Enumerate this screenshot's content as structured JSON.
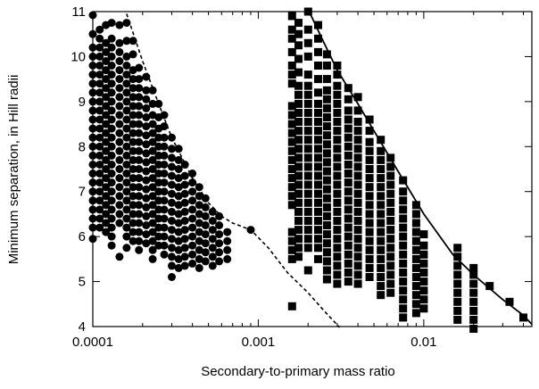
{
  "chart_data": {
    "type": "scatter",
    "title": "",
    "xlabel": "Secondary-to-primary mass ratio",
    "ylabel": "Minimum separation, in Hill radii",
    "xscale": "log",
    "xlim": [
      0.0001,
      0.045
    ],
    "ylim": [
      4,
      11
    ],
    "grid": false,
    "legend": "none",
    "x_ticks": [
      {
        "value": 0.0001,
        "label": "0.0001"
      },
      {
        "value": 0.001,
        "label": "0.001"
      },
      {
        "value": 0.01,
        "label": "0.01"
      }
    ],
    "y_ticks": [
      {
        "value": 4,
        "label": "4"
      },
      {
        "value": 5,
        "label": "5"
      },
      {
        "value": 6,
        "label": "6"
      },
      {
        "value": 7,
        "label": "7"
      },
      {
        "value": 8,
        "label": "8"
      },
      {
        "value": 9,
        "label": "9"
      },
      {
        "value": 10,
        "label": "10"
      },
      {
        "value": 11,
        "label": "11"
      }
    ],
    "circle_columns": [
      {
        "x": 0.0001,
        "y": [
          5.95,
          6.2,
          6.4,
          6.6,
          6.8,
          7.0,
          7.2,
          7.4,
          7.6,
          7.8,
          8.0,
          8.2,
          8.4,
          8.6,
          8.8,
          9.0,
          9.2,
          9.4,
          9.6,
          9.8,
          10.0,
          10.2,
          10.5,
          10.92
        ]
      },
      {
        "x": 0.00011,
        "y": [
          6.2,
          6.4,
          6.6,
          6.8,
          7.0,
          7.2,
          7.4,
          7.6,
          7.8,
          8.0,
          8.2,
          8.4,
          8.6,
          8.8,
          9.0,
          9.2,
          9.4,
          9.6,
          9.8,
          10.0,
          10.2,
          10.4,
          10.6
        ]
      },
      {
        "x": 0.00012,
        "y": [
          6.1,
          6.3,
          6.5,
          6.7,
          6.9,
          7.1,
          7.3,
          7.5,
          7.7,
          7.9,
          8.1,
          8.3,
          8.5,
          8.7,
          8.9,
          9.1,
          9.3,
          9.5,
          9.7,
          9.9,
          10.1,
          10.3,
          10.7
        ]
      },
      {
        "x": 0.00013,
        "y": [
          5.8,
          6.0,
          6.2,
          6.4,
          6.6,
          6.8,
          7.0,
          7.2,
          7.4,
          7.6,
          7.8,
          8.0,
          8.2,
          8.4,
          8.6,
          8.8,
          9.0,
          9.2,
          9.4,
          9.6,
          9.8,
          10.0,
          10.2,
          10.4,
          10.75
        ]
      },
      {
        "x": 0.000145,
        "y": [
          5.55,
          6.3,
          6.5,
          6.7,
          6.9,
          7.1,
          7.3,
          7.5,
          7.7,
          7.9,
          8.1,
          8.3,
          8.5,
          8.7,
          8.9,
          9.1,
          9.3,
          9.5,
          9.7,
          9.9,
          10.1,
          10.3,
          10.7
        ]
      },
      {
        "x": 0.00016,
        "y": [
          5.75,
          6.0,
          6.2,
          6.4,
          6.6,
          6.8,
          7.0,
          7.2,
          7.4,
          7.6,
          7.8,
          8.0,
          8.2,
          8.4,
          8.6,
          8.8,
          9.0,
          9.2,
          9.4,
          9.6,
          9.8,
          10.0,
          10.35,
          10.75
        ]
      },
      {
        "x": 0.000175,
        "y": [
          5.9,
          6.1,
          6.3,
          6.5,
          6.7,
          6.9,
          7.1,
          7.3,
          7.5,
          7.7,
          7.9,
          8.1,
          8.3,
          8.5,
          8.7,
          8.9,
          9.1,
          9.3,
          9.5,
          9.7,
          10.05,
          10.35
        ]
      },
      {
        "x": 0.00019,
        "y": [
          5.7,
          5.9,
          6.1,
          6.3,
          6.5,
          6.7,
          6.9,
          7.1,
          7.3,
          7.5,
          7.7,
          7.9,
          8.1,
          8.3,
          8.5,
          8.7,
          8.9,
          9.1,
          9.3,
          9.5,
          9.75
        ]
      },
      {
        "x": 0.00021,
        "y": [
          5.85,
          6.05,
          6.25,
          6.45,
          6.65,
          6.85,
          7.05,
          7.25,
          7.45,
          7.65,
          7.85,
          8.05,
          8.25,
          8.45,
          8.65,
          8.85,
          9.05,
          9.25,
          9.55
        ]
      },
      {
        "x": 0.00023,
        "y": [
          5.5,
          5.7,
          5.9,
          6.1,
          6.3,
          6.5,
          6.7,
          6.9,
          7.1,
          7.3,
          7.5,
          7.7,
          7.9,
          8.1,
          8.3,
          8.5,
          8.7,
          8.95,
          9.25
        ]
      },
      {
        "x": 0.00025,
        "y": [
          5.8,
          6.0,
          6.2,
          6.4,
          6.6,
          6.8,
          7.0,
          7.2,
          7.4,
          7.6,
          7.8,
          8.0,
          8.2,
          8.4,
          8.65,
          8.95
        ]
      },
      {
        "x": 0.00027,
        "y": [
          5.6,
          5.8,
          6.0,
          6.2,
          6.4,
          6.6,
          6.8,
          7.0,
          7.2,
          7.4,
          7.6,
          7.8,
          8.0,
          8.2,
          8.45,
          8.7
        ]
      },
      {
        "x": 0.0003,
        "y": [
          5.1,
          5.35,
          5.55,
          5.75,
          5.95,
          6.15,
          6.35,
          6.55,
          6.75,
          6.95,
          7.15,
          7.35,
          7.55,
          7.75,
          7.95,
          8.2
        ]
      },
      {
        "x": 0.00033,
        "y": [
          5.3,
          5.5,
          5.7,
          5.9,
          6.1,
          6.3,
          6.5,
          6.7,
          6.9,
          7.1,
          7.3,
          7.5,
          7.7,
          7.95
        ]
      },
      {
        "x": 0.00036,
        "y": [
          5.35,
          5.55,
          5.75,
          5.95,
          6.15,
          6.35,
          6.55,
          6.75,
          6.95,
          7.15,
          7.35,
          7.6
        ]
      },
      {
        "x": 0.0004,
        "y": [
          5.4,
          5.6,
          5.8,
          6.0,
          6.2,
          6.4,
          6.6,
          6.8,
          7.0,
          7.2,
          7.4
        ]
      },
      {
        "x": 0.00044,
        "y": [
          5.3,
          5.5,
          5.7,
          5.9,
          6.1,
          6.3,
          6.5,
          6.7,
          6.9,
          7.1
        ]
      },
      {
        "x": 0.00048,
        "y": [
          5.45,
          5.65,
          5.85,
          6.05,
          6.25,
          6.45,
          6.65,
          6.85
        ]
      },
      {
        "x": 0.00053,
        "y": [
          5.35,
          5.55,
          5.75,
          5.95,
          6.15,
          6.35,
          6.55
        ]
      },
      {
        "x": 0.00058,
        "y": [
          5.45,
          5.65,
          5.85,
          6.05,
          6.25,
          6.45
        ]
      },
      {
        "x": 0.00065,
        "y": [
          5.5,
          5.7,
          5.9,
          6.1
        ]
      },
      {
        "x": 0.0009,
        "y": [
          6.15
        ]
      }
    ],
    "square_columns": [
      {
        "x": 0.0016,
        "y": [
          4.45,
          5.5,
          5.7,
          5.9,
          6.1,
          6.7,
          6.9,
          7.1,
          7.3,
          7.5,
          7.7,
          7.9,
          8.1,
          8.3,
          8.5,
          8.7,
          8.9,
          9.4,
          9.6,
          9.8,
          10.1,
          10.4,
          10.6,
          10.9
        ]
      },
      {
        "x": 0.00175,
        "y": [
          5.55,
          5.75,
          5.95,
          6.15,
          6.35,
          6.55,
          6.75,
          6.95,
          7.15,
          7.35,
          7.55,
          7.75,
          7.95,
          8.15,
          8.35,
          8.55,
          8.75,
          8.95,
          9.15,
          9.35,
          9.65,
          9.95,
          10.25,
          10.5,
          10.75
        ]
      },
      {
        "x": 0.002,
        "y": [
          5.25,
          5.75,
          5.95,
          6.15,
          6.35,
          6.55,
          6.75,
          6.95,
          7.15,
          7.35,
          7.55,
          7.75,
          7.95,
          8.15,
          8.35,
          8.55,
          8.75,
          8.95,
          9.15,
          9.35,
          9.6,
          10.0,
          10.3,
          10.6,
          11.0
        ]
      },
      {
        "x": 0.0023,
        "y": [
          5.5,
          5.75,
          5.95,
          6.15,
          6.35,
          6.55,
          6.75,
          6.95,
          7.15,
          7.35,
          7.55,
          7.75,
          7.95,
          8.15,
          8.35,
          8.55,
          8.75,
          8.95,
          9.2,
          9.5,
          9.8,
          10.1,
          10.4,
          10.7
        ]
      },
      {
        "x": 0.0026,
        "y": [
          5.05,
          5.25,
          5.45,
          5.65,
          5.85,
          6.05,
          6.25,
          6.45,
          6.65,
          6.85,
          7.05,
          7.25,
          7.45,
          7.65,
          7.85,
          8.05,
          8.25,
          8.45,
          8.65,
          8.85,
          9.05,
          9.25,
          9.5,
          9.8,
          10.05
        ]
      },
      {
        "x": 0.003,
        "y": [
          4.95,
          5.15,
          5.35,
          5.55,
          5.75,
          5.95,
          6.15,
          6.35,
          6.55,
          6.75,
          6.95,
          7.15,
          7.35,
          7.55,
          7.75,
          7.95,
          8.15,
          8.35,
          8.55,
          8.75,
          8.95,
          9.15,
          9.35,
          9.6,
          9.8
        ]
      },
      {
        "x": 0.0035,
        "y": [
          5.0,
          5.2,
          5.4,
          5.6,
          5.8,
          6.0,
          6.2,
          6.4,
          6.6,
          6.8,
          7.0,
          7.2,
          7.4,
          7.6,
          7.8,
          8.0,
          8.2,
          8.4,
          8.6,
          8.8,
          9.05,
          9.3
        ]
      },
      {
        "x": 0.004,
        "y": [
          4.95,
          5.15,
          5.35,
          5.55,
          5.75,
          5.95,
          6.15,
          6.35,
          6.55,
          6.75,
          6.95,
          7.15,
          7.35,
          7.55,
          7.75,
          7.95,
          8.15,
          8.35,
          8.55,
          8.8,
          9.1
        ]
      },
      {
        "x": 0.0047,
        "y": [
          5.1,
          5.3,
          5.5,
          5.7,
          5.9,
          6.1,
          6.3,
          6.5,
          6.7,
          6.9,
          7.1,
          7.3,
          7.5,
          7.7,
          7.9,
          8.1,
          8.35,
          8.6
        ]
      },
      {
        "x": 0.0055,
        "y": [
          4.7,
          4.9,
          5.1,
          5.3,
          5.5,
          5.7,
          5.9,
          6.1,
          6.3,
          6.5,
          6.7,
          6.9,
          7.1,
          7.3,
          7.5,
          7.7,
          7.9,
          8.15
        ]
      },
      {
        "x": 0.0063,
        "y": [
          4.75,
          4.95,
          5.15,
          5.35,
          5.55,
          5.75,
          5.95,
          6.15,
          6.35,
          6.55,
          6.75,
          6.95,
          7.15,
          7.35,
          7.55,
          7.75
        ]
      },
      {
        "x": 0.0075,
        "y": [
          4.2,
          4.4,
          4.6,
          4.8,
          5.0,
          5.2,
          5.4,
          5.6,
          5.8,
          6.0,
          6.2,
          6.4,
          6.6,
          6.8,
          7.0,
          7.25
        ]
      },
      {
        "x": 0.009,
        "y": [
          4.3,
          4.5,
          4.7,
          4.9,
          5.1,
          5.3,
          5.5,
          5.7,
          5.9,
          6.1,
          6.3,
          6.5,
          6.7
        ]
      },
      {
        "x": 0.01,
        "y": [
          4.4,
          4.6,
          4.8,
          5.0,
          5.2,
          5.4,
          5.6,
          5.8,
          6.05
        ]
      },
      {
        "x": 0.016,
        "y": [
          4.15,
          4.35,
          4.55,
          4.75,
          4.95,
          5.15,
          5.35,
          5.55,
          5.75
        ]
      },
      {
        "x": 0.02,
        "y": [
          3.95,
          4.15,
          4.35,
          4.55,
          4.75,
          4.95,
          5.15,
          5.3
        ]
      },
      {
        "x": 0.025,
        "y": [
          4.9
        ]
      },
      {
        "x": 0.033,
        "y": [
          4.55
        ]
      },
      {
        "x": 0.04,
        "y": [
          4.2
        ]
      }
    ],
    "dashed_curve": [
      [
        0.00016,
        10.95
      ],
      [
        0.0002,
        9.9
      ],
      [
        0.00025,
        8.95
      ],
      [
        0.0003,
        8.2
      ],
      [
        0.0004,
        7.3
      ],
      [
        0.0005,
        6.75
      ],
      [
        0.0006,
        6.45
      ],
      [
        0.0007,
        6.3
      ],
      [
        0.0009,
        6.15
      ],
      [
        0.00115,
        5.75
      ],
      [
        0.0015,
        5.2
      ],
      [
        0.002,
        4.75
      ],
      [
        0.0025,
        4.35
      ],
      [
        0.0031,
        3.98
      ]
    ],
    "solid_curve": [
      [
        0.002,
        11.05
      ],
      [
        0.0025,
        10.3
      ],
      [
        0.003,
        9.7
      ],
      [
        0.004,
        8.95
      ],
      [
        0.005,
        8.35
      ],
      [
        0.007,
        7.45
      ],
      [
        0.01,
        6.5
      ],
      [
        0.015,
        5.6
      ],
      [
        0.02,
        5.15
      ],
      [
        0.03,
        4.6
      ],
      [
        0.04,
        4.25
      ],
      [
        0.045,
        4.05
      ]
    ]
  }
}
